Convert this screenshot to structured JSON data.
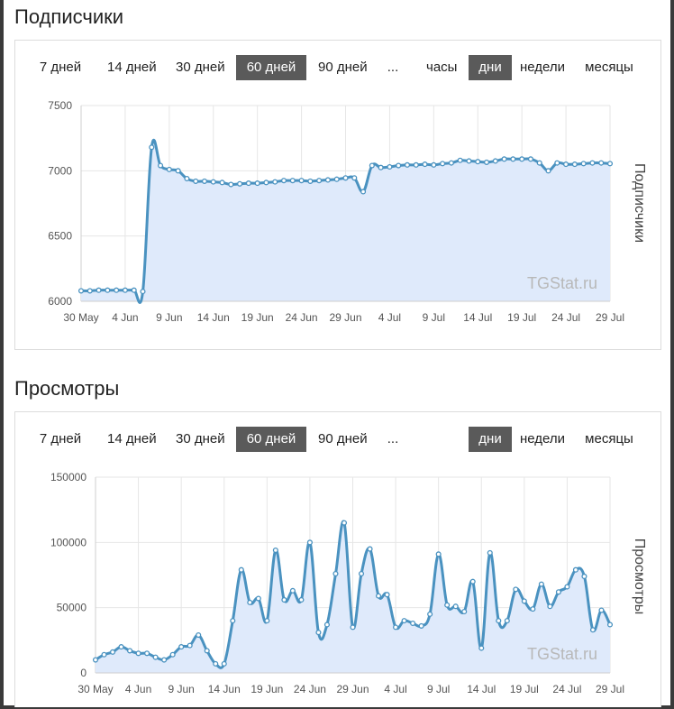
{
  "subscribers": {
    "title": "Подписчики",
    "range_buttons": [
      {
        "label": "7 дней",
        "active": false
      },
      {
        "label": "14 дней",
        "active": false
      },
      {
        "label": "30 дней",
        "active": false
      },
      {
        "label": "60 дней",
        "active": true
      },
      {
        "label": "90 дней",
        "active": false
      },
      {
        "label": "...",
        "active": false
      }
    ],
    "period_buttons": [
      {
        "label": "часы",
        "active": false
      },
      {
        "label": "дни",
        "active": true
      },
      {
        "label": "недели",
        "active": false
      },
      {
        "label": "месяцы",
        "active": false
      }
    ],
    "watermark": "TGStat.ru"
  },
  "views": {
    "title": "Просмотры",
    "range_buttons": [
      {
        "label": "7 дней",
        "active": false
      },
      {
        "label": "14 дней",
        "active": false
      },
      {
        "label": "30 дней",
        "active": false
      },
      {
        "label": "60 дней",
        "active": true
      },
      {
        "label": "90 дней",
        "active": false
      },
      {
        "label": "...",
        "active": false
      }
    ],
    "period_buttons": [
      {
        "label": "дни",
        "active": true
      },
      {
        "label": "недели",
        "active": false
      },
      {
        "label": "месяцы",
        "active": false
      }
    ],
    "watermark": "TGStat.ru"
  },
  "colors": {
    "line": "#4a92c0",
    "fill": "#dfeafb",
    "grid": "#e6e6e6",
    "active_button": "#5a5a5a"
  },
  "chart_data": [
    {
      "type": "area",
      "title": "",
      "ylabel": "Подписчики",
      "ylim": [
        6000,
        7500
      ],
      "yticks": [
        6000,
        6500,
        7000,
        7500
      ],
      "xticks": [
        "30 May",
        "4 Jun",
        "9 Jun",
        "14 Jun",
        "19 Jun",
        "24 Jun",
        "29 Jun",
        "4 Jul",
        "9 Jul",
        "14 Jul",
        "19 Jul",
        "24 Jul",
        "29 Jul"
      ],
      "grid": true,
      "x": [
        "30 May",
        "31 May",
        "1 Jun",
        "2 Jun",
        "3 Jun",
        "4 Jun",
        "5 Jun",
        "6 Jun",
        "7 Jun",
        "8 Jun",
        "9 Jun",
        "10 Jun",
        "11 Jun",
        "12 Jun",
        "13 Jun",
        "14 Jun",
        "15 Jun",
        "16 Jun",
        "17 Jun",
        "18 Jun",
        "19 Jun",
        "20 Jun",
        "21 Jun",
        "22 Jun",
        "23 Jun",
        "24 Jun",
        "25 Jun",
        "26 Jun",
        "27 Jun",
        "28 Jun",
        "29 Jun",
        "30 Jun",
        "1 Jul",
        "2 Jul",
        "3 Jul",
        "4 Jul",
        "5 Jul",
        "6 Jul",
        "7 Jul",
        "8 Jul",
        "9 Jul",
        "10 Jul",
        "11 Jul",
        "12 Jul",
        "13 Jul",
        "14 Jul",
        "15 Jul",
        "16 Jul",
        "17 Jul",
        "18 Jul",
        "19 Jul",
        "20 Jul",
        "21 Jul",
        "22 Jul",
        "23 Jul",
        "24 Jul",
        "25 Jul",
        "26 Jul",
        "27 Jul",
        "28 Jul",
        "29 Jul"
      ],
      "values": [
        6080,
        6080,
        6085,
        6085,
        6085,
        6085,
        6085,
        6075,
        7180,
        7040,
        7010,
        7000,
        6940,
        6920,
        6920,
        6915,
        6910,
        6895,
        6900,
        6905,
        6905,
        6910,
        6915,
        6925,
        6925,
        6925,
        6920,
        6925,
        6930,
        6935,
        6945,
        6945,
        6840,
        7040,
        7025,
        7030,
        7040,
        7045,
        7045,
        7050,
        7045,
        7055,
        7060,
        7080,
        7075,
        7070,
        7065,
        7075,
        7090,
        7090,
        7090,
        7090,
        7060,
        7000,
        7060,
        7050,
        7050,
        7055,
        7060,
        7060,
        7055
      ]
    },
    {
      "type": "area",
      "title": "",
      "ylabel": "Просмотры",
      "ylim": [
        0,
        150000
      ],
      "yticks": [
        0,
        50000,
        100000,
        150000
      ],
      "xticks": [
        "30 May",
        "4 Jun",
        "9 Jun",
        "14 Jun",
        "19 Jun",
        "24 Jun",
        "29 Jun",
        "4 Jul",
        "9 Jul",
        "14 Jul",
        "19 Jul",
        "24 Jul",
        "29 Jul"
      ],
      "grid": true,
      "x": [
        "30 May",
        "31 May",
        "1 Jun",
        "2 Jun",
        "3 Jun",
        "4 Jun",
        "5 Jun",
        "6 Jun",
        "7 Jun",
        "8 Jun",
        "9 Jun",
        "10 Jun",
        "11 Jun",
        "12 Jun",
        "13 Jun",
        "14 Jun",
        "15 Jun",
        "16 Jun",
        "17 Jun",
        "18 Jun",
        "19 Jun",
        "20 Jun",
        "21 Jun",
        "22 Jun",
        "23 Jun",
        "24 Jun",
        "25 Jun",
        "26 Jun",
        "27 Jun",
        "28 Jun",
        "29 Jun",
        "30 Jun",
        "1 Jul",
        "2 Jul",
        "3 Jul",
        "4 Jul",
        "5 Jul",
        "6 Jul",
        "7 Jul",
        "8 Jul",
        "9 Jul",
        "10 Jul",
        "11 Jul",
        "12 Jul",
        "13 Jul",
        "14 Jul",
        "15 Jul",
        "16 Jul",
        "17 Jul",
        "18 Jul",
        "19 Jul",
        "20 Jul",
        "21 Jul",
        "22 Jul",
        "23 Jul",
        "24 Jul",
        "25 Jul",
        "26 Jul",
        "27 Jul",
        "28 Jul",
        "29 Jul"
      ],
      "values": [
        10000,
        14000,
        16000,
        20000,
        17000,
        15000,
        15000,
        12000,
        10000,
        14000,
        20000,
        21000,
        29000,
        17000,
        7000,
        7000,
        40000,
        79000,
        54000,
        57000,
        40000,
        94000,
        56000,
        63000,
        56000,
        100000,
        31000,
        37000,
        76000,
        115000,
        35000,
        76000,
        95000,
        59000,
        60000,
        35000,
        40000,
        38000,
        36000,
        45000,
        91000,
        52000,
        51000,
        47000,
        70000,
        19000,
        92000,
        40000,
        40000,
        64000,
        55000,
        49000,
        68000,
        51000,
        62000,
        66000,
        79000,
        74000,
        33000,
        48000,
        37000
      ]
    }
  ]
}
